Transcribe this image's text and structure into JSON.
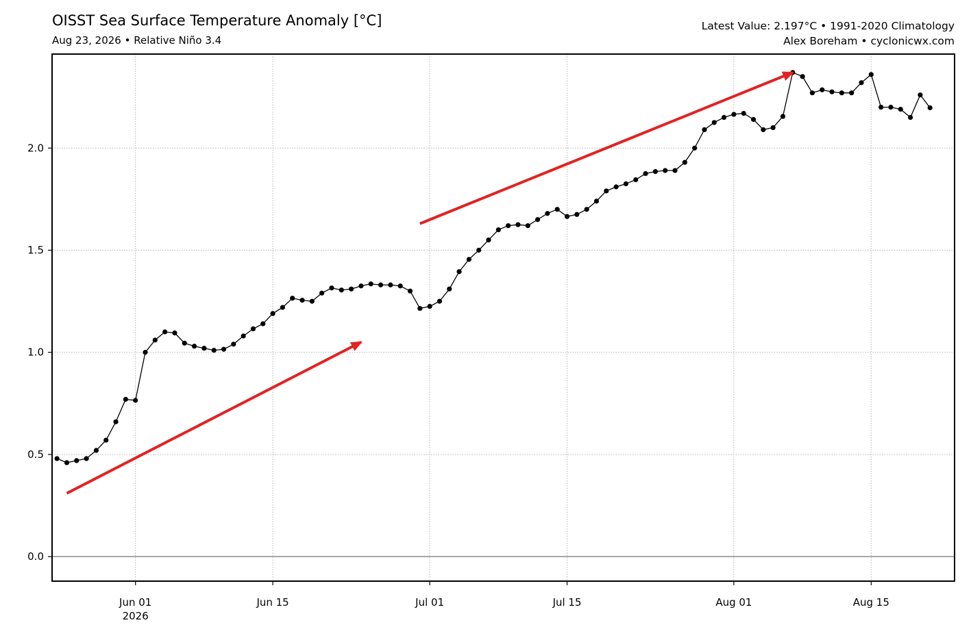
{
  "header": {
    "title": "OISST Sea Surface Temperature Anomaly [°C]",
    "subtitle": "Aug 23, 2026 • Relative Niño 3.4",
    "info_line1": "Latest Value: 2.197°C • 1991-2020 Climatology",
    "info_line2": "Alex Boreham • cyclonicwx.com"
  },
  "chart_data": {
    "type": "line",
    "title": "OISST Sea Surface Temperature Anomaly [°C]",
    "xlabel": "",
    "ylabel": "",
    "x_start": "2026-05-24",
    "x_end": "2026-08-23",
    "xlim": [
      "2026-05-24",
      "2026-08-23"
    ],
    "ylim": [
      -0.12,
      2.46
    ],
    "y_ticks": [
      0.0,
      0.5,
      1.0,
      1.5,
      2.0
    ],
    "y_tick_labels": [
      "0.0",
      "0.5",
      "1.0",
      "1.5",
      "2.0"
    ],
    "x_ticks": [
      "2026-06-01",
      "2026-06-15",
      "2026-07-01",
      "2026-07-15",
      "2026-08-01",
      "2026-08-15"
    ],
    "x_tick_labels": [
      "Jun 01\n2026",
      "Jun 15",
      "Jul 01",
      "Jul 15",
      "Aug 01",
      "Aug 15"
    ],
    "grid": true,
    "zero_line": true,
    "series": [
      {
        "color": "#000000",
        "values": [
          0.48,
          0.46,
          0.47,
          0.48,
          0.52,
          0.57,
          0.66,
          0.77,
          0.765,
          1.0,
          1.06,
          1.1,
          1.095,
          1.045,
          1.03,
          1.02,
          1.01,
          1.015,
          1.04,
          1.08,
          1.115,
          1.14,
          1.19,
          1.22,
          1.265,
          1.255,
          1.25,
          1.29,
          1.315,
          1.305,
          1.31,
          1.325,
          1.335,
          1.33,
          1.33,
          1.325,
          1.3,
          1.215,
          1.225,
          1.25,
          1.31,
          1.395,
          1.455,
          1.5,
          1.55,
          1.6,
          1.62,
          1.625,
          1.62,
          1.65,
          1.68,
          1.7,
          1.665,
          1.675,
          1.7,
          1.74,
          1.79,
          1.81,
          1.825,
          1.845,
          1.875,
          1.885,
          1.89,
          1.89,
          1.93,
          2.0,
          2.09,
          2.125,
          2.15,
          2.165,
          2.17,
          2.14,
          2.09,
          2.1,
          2.155,
          2.37,
          2.35,
          2.27,
          2.285,
          2.275,
          2.27,
          2.27,
          2.32,
          2.36,
          2.2,
          2.2,
          2.19,
          2.15,
          2.26,
          2.197
        ]
      }
    ],
    "annotations": [
      {
        "type": "arrow",
        "color": "#e32222",
        "from": {
          "x": "2026-05-25",
          "y": 0.31
        },
        "to": {
          "x": "2026-06-24",
          "y": 1.05
        }
      },
      {
        "type": "arrow",
        "color": "#e32222",
        "from": {
          "x": "2026-06-30",
          "y": 1.63
        },
        "to": {
          "x": "2026-08-07",
          "y": 2.37
        }
      }
    ]
  }
}
